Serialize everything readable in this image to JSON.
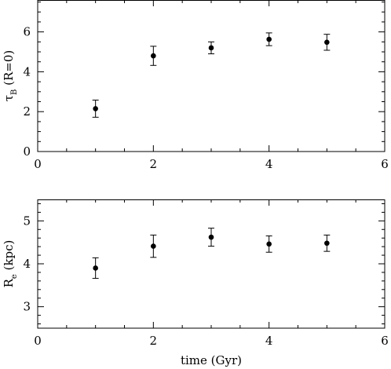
{
  "chart_data": [
    {
      "type": "scatter",
      "xlabel": "",
      "ylabel": {
        "main": "τ",
        "sub": "B",
        "suffix": " (R=0)"
      },
      "xlim": [
        0,
        6
      ],
      "ylim": [
        0,
        7.6
      ],
      "xticks": [
        0,
        2,
        4,
        6
      ],
      "yticks": [
        0,
        2,
        4,
        6
      ],
      "x_minor_step": 0.5,
      "y_minor_step": 0.5,
      "series": [
        {
          "points": [
            {
              "x": 1,
              "y": 2.15,
              "err": 0.43
            },
            {
              "x": 2,
              "y": 4.8,
              "err": 0.48
            },
            {
              "x": 3,
              "y": 5.2,
              "err": 0.3
            },
            {
              "x": 4,
              "y": 5.63,
              "err": 0.32
            },
            {
              "x": 5,
              "y": 5.48,
              "err": 0.4
            }
          ]
        }
      ]
    },
    {
      "type": "scatter",
      "xlabel": "time (Gyr)",
      "ylabel": {
        "main": "R",
        "sub": "e",
        "suffix": " (kpc)"
      },
      "xlim": [
        0,
        6
      ],
      "ylim": [
        2.5,
        5.5
      ],
      "xticks": [
        0,
        2,
        4,
        6
      ],
      "yticks": [
        3,
        4,
        5
      ],
      "x_minor_step": 0.5,
      "y_minor_step": 0.2,
      "series": [
        {
          "points": [
            {
              "x": 1,
              "y": 3.9,
              "err": 0.24
            },
            {
              "x": 2,
              "y": 4.41,
              "err": 0.26
            },
            {
              "x": 3,
              "y": 4.62,
              "err": 0.21
            },
            {
              "x": 4,
              "y": 4.46,
              "err": 0.19
            },
            {
              "x": 5,
              "y": 4.48,
              "err": 0.19
            }
          ]
        }
      ]
    }
  ]
}
